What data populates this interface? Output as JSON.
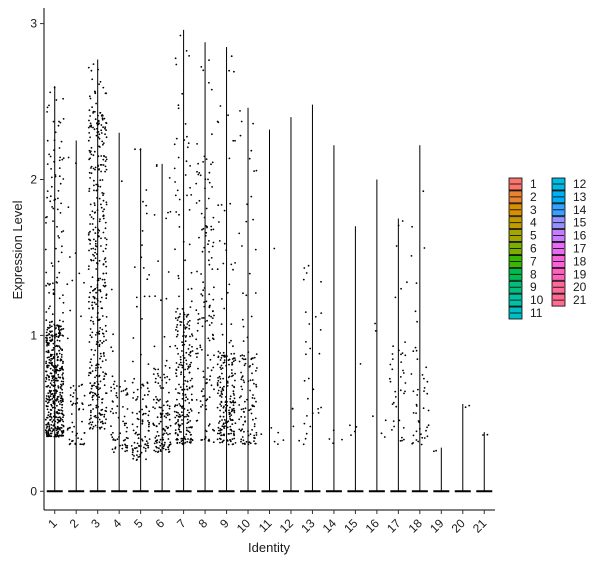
{
  "chart_data": {
    "type": "violin",
    "xlabel": "Identity",
    "ylabel": "Expression Level",
    "ylim": [
      -0.12,
      3.1
    ],
    "yticks": [
      0,
      1,
      2,
      3
    ],
    "categories": [
      "1",
      "2",
      "3",
      "4",
      "5",
      "6",
      "7",
      "8",
      "9",
      "10",
      "11",
      "12",
      "13",
      "14",
      "15",
      "16",
      "17",
      "18",
      "19",
      "20",
      "21"
    ],
    "max_values": [
      2.6,
      2.25,
      2.77,
      2.3,
      2.2,
      2.1,
      2.96,
      2.88,
      2.85,
      2.46,
      2.32,
      2.4,
      2.48,
      2.22,
      1.7,
      2.0,
      1.75,
      2.22,
      0.28,
      0.56,
      0.38
    ],
    "dense_range": [
      [
        0.35,
        1.1
      ],
      [
        0.3,
        0.7
      ],
      [
        0.4,
        2.45
      ],
      [
        0.25,
        0.7
      ],
      [
        0.2,
        0.7
      ],
      [
        0.25,
        0.8
      ],
      [
        0.3,
        1.2
      ],
      [
        0.3,
        2.2
      ],
      [
        0.3,
        0.9
      ],
      [
        0.3,
        0.9
      ],
      [
        0.3,
        0.6
      ],
      [
        0.3,
        0.6
      ],
      [
        0.3,
        1.2
      ],
      [
        0.3,
        0.5
      ],
      [
        0.3,
        0.5
      ],
      [
        0.3,
        0.5
      ],
      [
        0.3,
        1.0
      ],
      [
        0.3,
        1.2
      ],
      [
        0.25,
        0.28
      ],
      [
        0.5,
        0.56
      ],
      [
        0.36,
        0.38
      ]
    ],
    "point_counts": [
      520,
      60,
      420,
      70,
      110,
      130,
      260,
      150,
      220,
      120,
      6,
      5,
      28,
      4,
      5,
      6,
      40,
      45,
      2,
      2,
      2
    ],
    "legend_title": "",
    "legend_position": "right",
    "legend": [
      {
        "label": "1",
        "color": "#F8766D"
      },
      {
        "label": "2",
        "color": "#EA8331"
      },
      {
        "label": "3",
        "color": "#D89000"
      },
      {
        "label": "4",
        "color": "#C09B00"
      },
      {
        "label": "5",
        "color": "#A3A500"
      },
      {
        "label": "6",
        "color": "#7CAE00"
      },
      {
        "label": "7",
        "color": "#39B600"
      },
      {
        "label": "8",
        "color": "#00BB4E"
      },
      {
        "label": "9",
        "color": "#00BF7D"
      },
      {
        "label": "10",
        "color": "#00C1A3"
      },
      {
        "label": "11",
        "color": "#00BFC4"
      },
      {
        "label": "12",
        "color": "#00BAE0"
      },
      {
        "label": "13",
        "color": "#00B0F6"
      },
      {
        "label": "14",
        "color": "#35A2FF"
      },
      {
        "label": "15",
        "color": "#9590FF"
      },
      {
        "label": "16",
        "color": "#C77CFF"
      },
      {
        "label": "17",
        "color": "#E76BF3"
      },
      {
        "label": "18",
        "color": "#FA62DB"
      },
      {
        "label": "19",
        "color": "#FF62BC"
      },
      {
        "label": "20",
        "color": "#FF6A98"
      },
      {
        "label": "21",
        "color": "#FF6C91"
      }
    ]
  }
}
